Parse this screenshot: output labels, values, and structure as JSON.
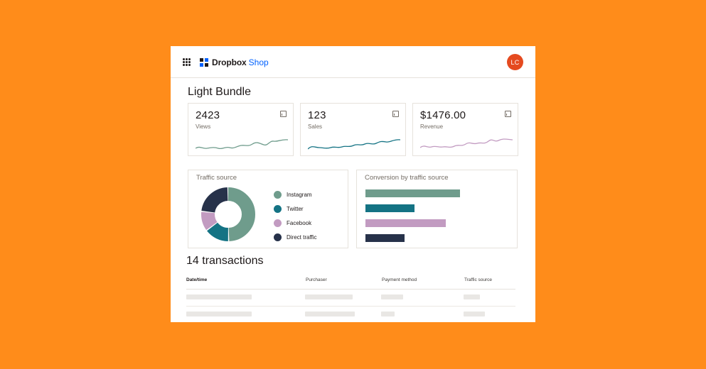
{
  "app": {
    "brand_name": "Dropbox",
    "brand_suffix": "Shop",
    "avatar_initials": "LC",
    "accent_color": "#0061fe",
    "background_color": "#ff8c1a"
  },
  "product": {
    "title": "Light Bundle"
  },
  "stats": [
    {
      "value": "2423",
      "label": "Views",
      "icon": "chart-icon",
      "color": "#6f9c8c"
    },
    {
      "value": "123",
      "label": "Sales",
      "icon": "chart-icon",
      "color": "#147384"
    },
    {
      "value": "$1476.00",
      "label": "Revenue",
      "icon": "chart-icon",
      "color": "#c29bc1"
    }
  ],
  "traffic_source": {
    "title": "Traffic source",
    "legend": [
      {
        "label": "Instagram",
        "color": "#6f9c8c"
      },
      {
        "label": "Twitter",
        "color": "#147384"
      },
      {
        "label": "Facebook",
        "color": "#c29bc1"
      },
      {
        "label": "Direct traffic",
        "color": "#27324a"
      }
    ]
  },
  "conversion": {
    "title": "Conversion by traffic source"
  },
  "chart_data": [
    {
      "type": "pie",
      "categories": [
        "Instagram",
        "Twitter",
        "Facebook",
        "Direct traffic"
      ],
      "values": [
        50,
        15,
        12,
        23
      ],
      "colors": [
        "#6f9c8c",
        "#147384",
        "#c29bc1",
        "#27324a"
      ]
    },
    {
      "type": "bar",
      "orientation": "horizontal",
      "categories": [
        "Instagram",
        "Twitter",
        "Facebook",
        "Direct traffic"
      ],
      "values": [
        100,
        52,
        85,
        41
      ],
      "colors": [
        "#6f9c8c",
        "#147384",
        "#c29bc1",
        "#27324a"
      ]
    }
  ],
  "transactions": {
    "title": "14 transactions",
    "columns": [
      "Date/time",
      "Purchaser",
      "Payment method",
      "Traffic source"
    ]
  }
}
